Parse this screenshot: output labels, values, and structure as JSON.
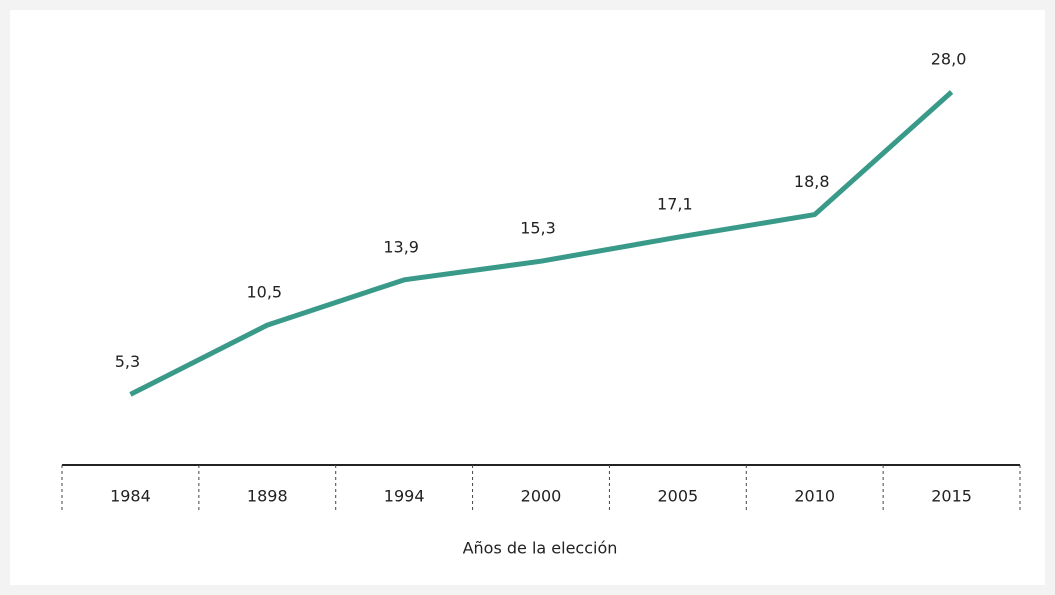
{
  "chart_data": {
    "type": "line",
    "categories": [
      "1984",
      "1898",
      "1994",
      "2000",
      "2005",
      "2010",
      "2015"
    ],
    "values": [
      5.3,
      10.5,
      13.9,
      15.3,
      17.1,
      18.8,
      28.0
    ],
    "value_labels": [
      "5,3",
      "10,5",
      "13,9",
      "15,3",
      "17,1",
      "18,8",
      "28,0"
    ],
    "color": "#3a9a8a",
    "x_label": "Años de la elección"
  }
}
